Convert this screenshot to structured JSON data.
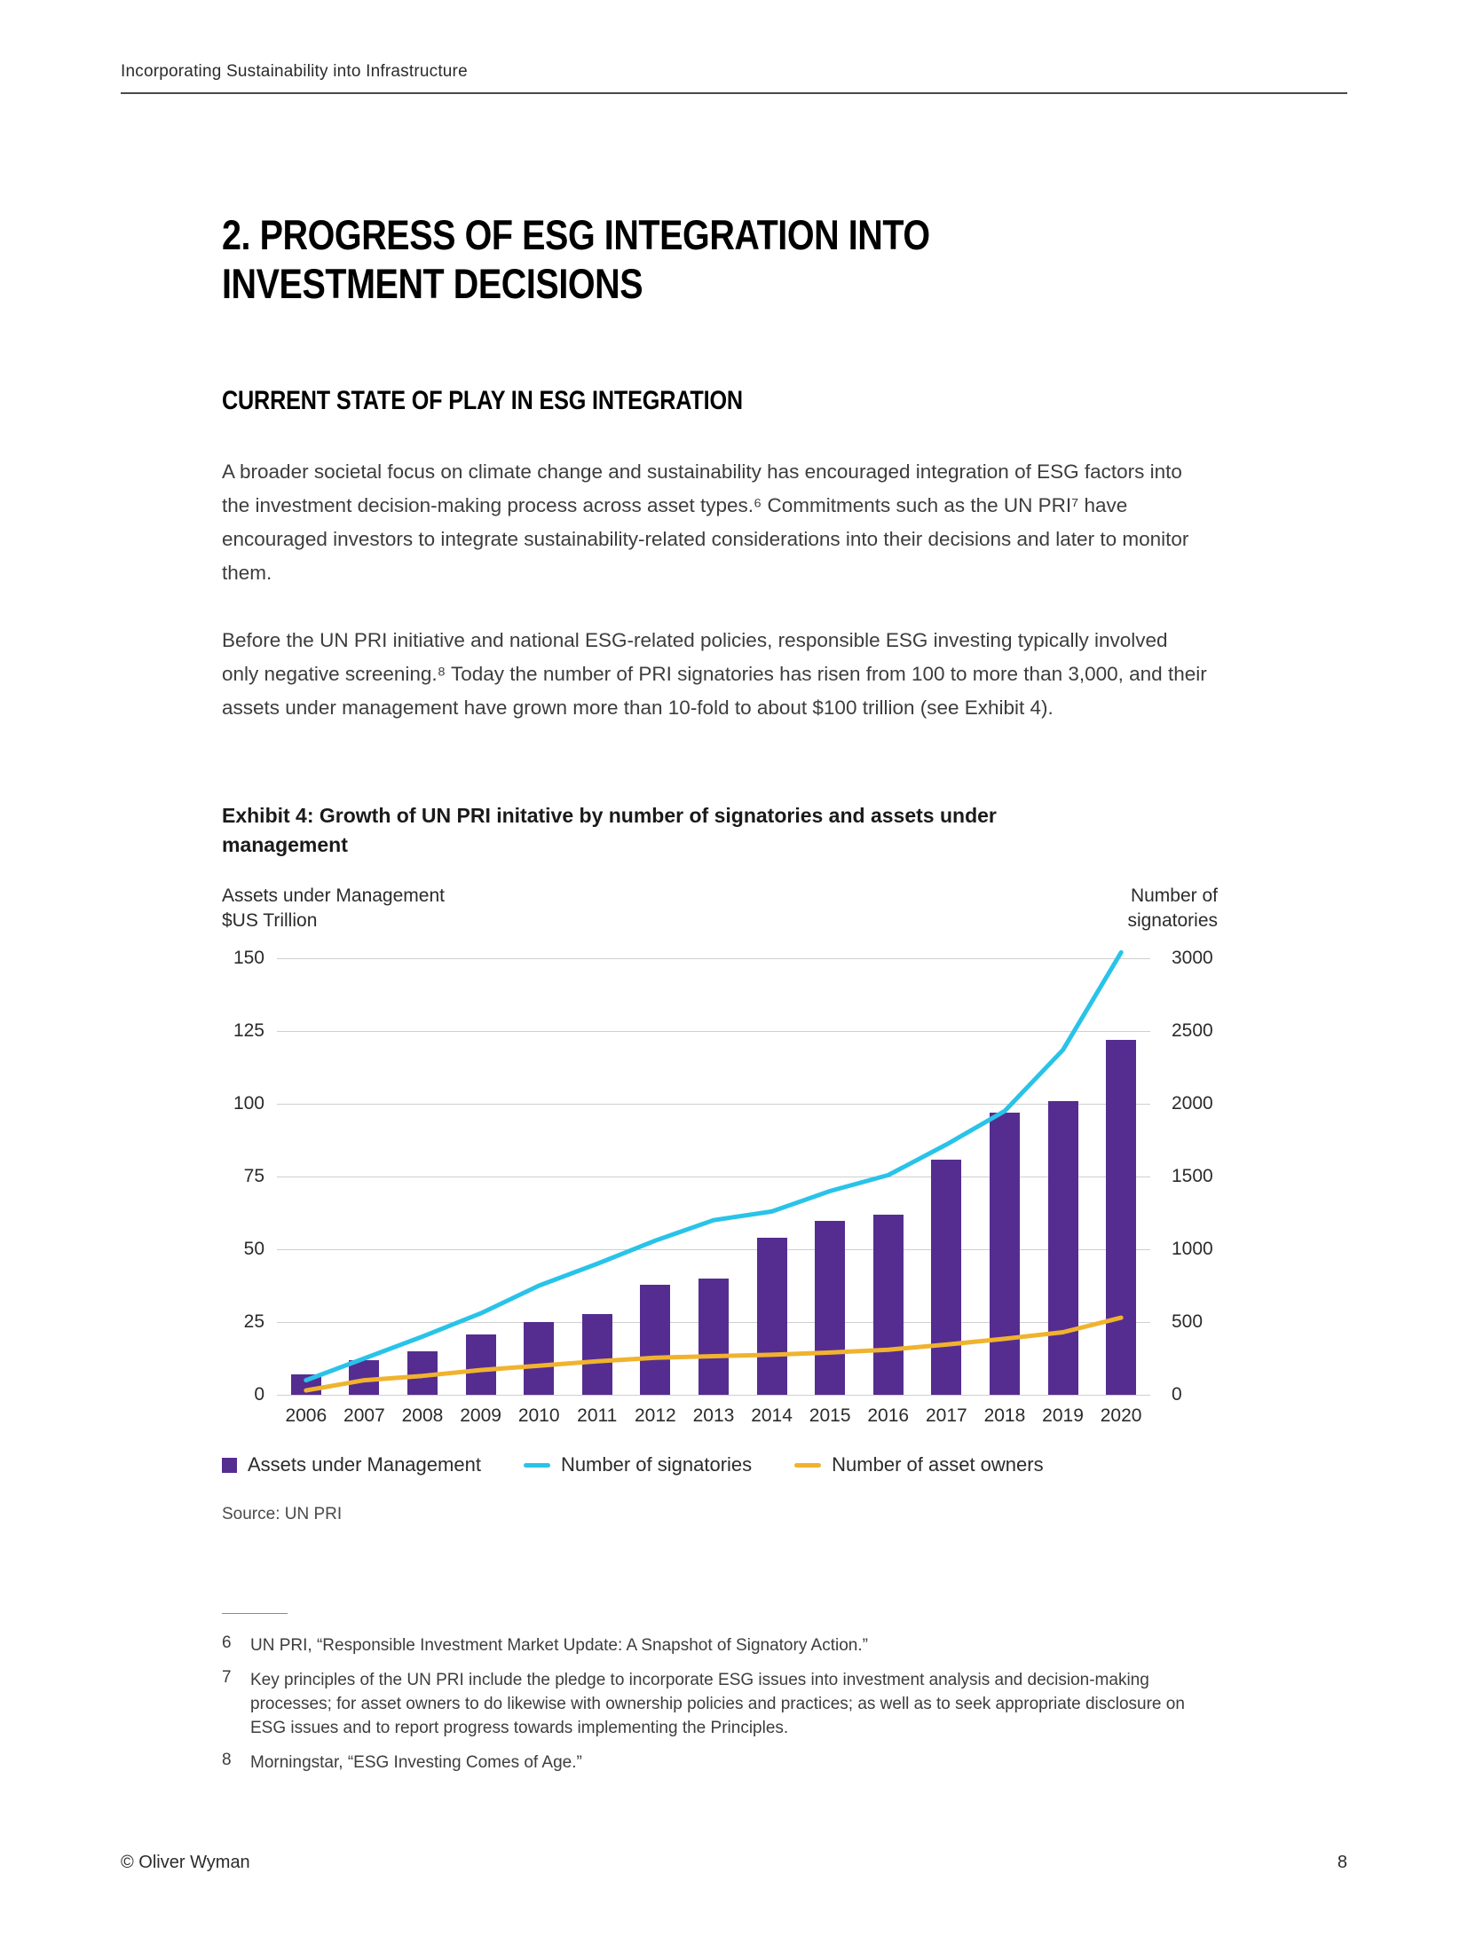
{
  "header": {
    "doc_title": "Incorporating Sustainability into Infrastructure"
  },
  "article": {
    "title_lines": [
      "2. PROGRESS OF ESG INTEGRATION INTO",
      "INVESTMENT DECISIONS"
    ],
    "subtitle": "CURRENT STATE OF PLAY IN ESG INTEGRATION",
    "paragraphs": [
      "A broader societal focus on climate change and sustainability has encouraged integration of ESG factors into the investment decision-making process across asset types.⁶ Commitments such as the UN PRI⁷ have encouraged investors to integrate sustainability-related considerations into their decisions and later to monitor them.",
      "Before the UN PRI initiative and national ESG-related policies, responsible ESG investing typically involved only negative screening.⁸ Today the number of PRI signatories has risen from 100 to more than 3,000, and their assets under management have grown more than 10-fold to about $100 trillion (see Exhibit 4)."
    ]
  },
  "chart_data": {
    "type": "bar",
    "title": "Exhibit 4: Growth of UN PRI initative by number of signatories and assets under management",
    "categories": [
      "2006",
      "2007",
      "2008",
      "2009",
      "2010",
      "2011",
      "2012",
      "2013",
      "2014",
      "2015",
      "2016",
      "2017",
      "2018",
      "2019",
      "2020"
    ],
    "left_axis": {
      "label_lines": [
        "Assets under Management",
        "$US Trillion"
      ],
      "ticks": [
        0,
        25,
        50,
        75,
        100,
        125,
        150
      ],
      "range": [
        0,
        150
      ]
    },
    "right_axis": {
      "label_lines": [
        "Number of",
        "signatories"
      ],
      "ticks": [
        0,
        500,
        1000,
        1500,
        2000,
        2500,
        3000
      ],
      "range": [
        0,
        3000
      ]
    },
    "grid": true,
    "legend_position": "bottom",
    "series": [
      {
        "name": "Assets under Management",
        "type": "bar",
        "axis": "left",
        "color": "#552d90",
        "values": [
          7,
          12,
          15,
          21,
          25,
          28,
          38,
          40,
          54,
          60,
          62,
          81,
          97,
          101,
          122
        ]
      },
      {
        "name": "Number of signatories",
        "type": "line",
        "axis": "right",
        "color": "#29c3e8",
        "values": [
          100,
          250,
          400,
          560,
          750,
          900,
          1060,
          1200,
          1260,
          1400,
          1510,
          1720,
          1950,
          2370,
          3040
        ]
      },
      {
        "name": "Number of asset owners",
        "type": "line",
        "axis": "right",
        "color": "#f0b32e",
        "values": [
          30,
          100,
          130,
          170,
          200,
          230,
          255,
          265,
          275,
          290,
          310,
          345,
          385,
          430,
          530
        ]
      }
    ],
    "source": "Source: UN PRI"
  },
  "footnotes": [
    {
      "num": "6",
      "text": "UN PRI, “Responsible Investment Market Update: A Snapshot of Signatory Action.”"
    },
    {
      "num": "7",
      "text": "Key principles of the UN PRI include the pledge to incorporate ESG issues into investment analysis and decision-making processes; for asset owners to do likewise with ownership policies and practices; as well as to seek appropriate disclosure on ESG issues and to report progress towards implementing the Principles."
    },
    {
      "num": "8",
      "text": "Morningstar, “ESG Investing Comes of Age.”"
    }
  ],
  "footer": {
    "left": "© Oliver Wyman",
    "page": "8"
  }
}
